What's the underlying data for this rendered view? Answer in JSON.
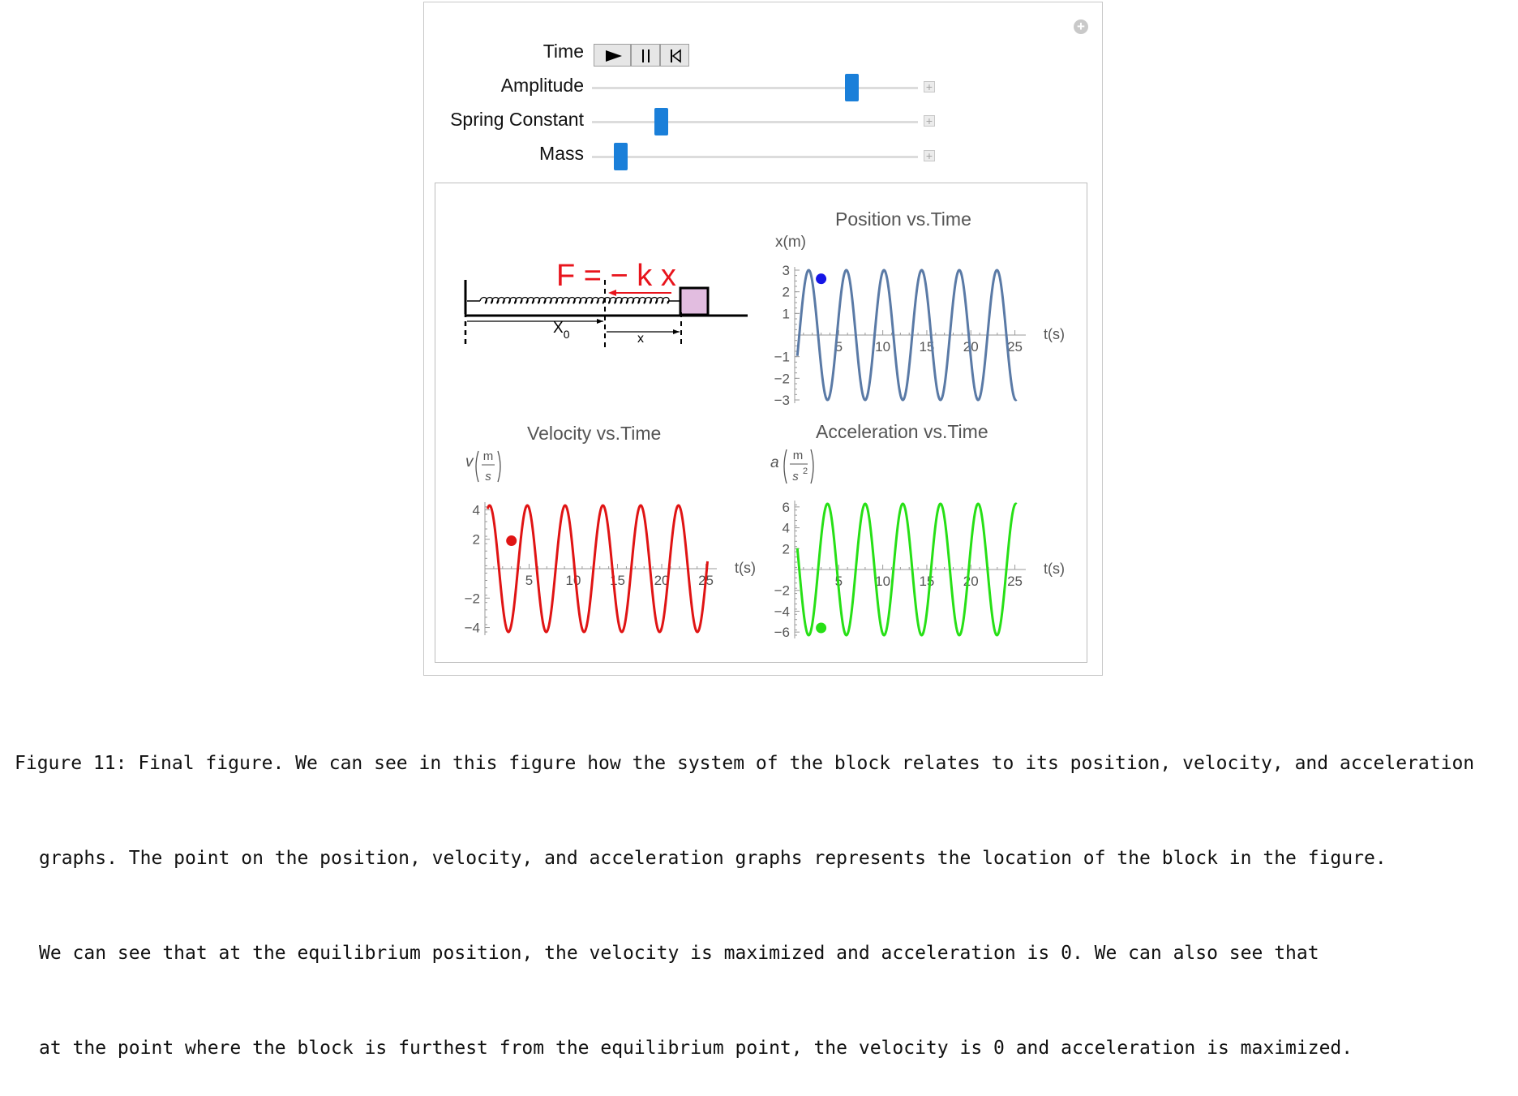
{
  "controls": {
    "time_label": "Time",
    "amplitude_label": "Amplitude",
    "spring_constant_label": "Spring Constant",
    "mass_label": "Mass",
    "amplitude_level": 0.81,
    "spring_constant_level": 0.2,
    "mass_level": 0.07,
    "accent_color": "#1a7fd9",
    "icons": [
      "play-icon",
      "pause-icon",
      "reset-icon",
      "add-icon"
    ]
  },
  "diagram": {
    "force_label": "F = − k x",
    "x0_label": "X",
    "x0_subscript": "0",
    "x_label": "x",
    "force_color": "#e8141c",
    "block_color": "#e2bde0"
  },
  "chart_data": [
    {
      "type": "line",
      "title": "Position vs.Time",
      "ylabel": "x(m)",
      "xlabel": "t(s)",
      "xlim": [
        0,
        25.5
      ],
      "ylim": [
        -3,
        3
      ],
      "xticks": [
        5,
        10,
        15,
        20,
        25
      ],
      "yticks": [
        -3,
        -2,
        -1,
        1,
        2,
        3
      ],
      "series": [
        {
          "amplitude": 3,
          "omega": 1.47,
          "phase": -2.34,
          "t_range": [
            0.3,
            25.2
          ],
          "color": "#5a7aa6"
        }
      ],
      "marker": {
        "t": 3.0,
        "value": 2.6,
        "color": "#1515e6"
      }
    },
    {
      "type": "line",
      "title": "Velocity vs.Time",
      "ylabel": "v",
      "ylabel_unit_num": "m",
      "ylabel_unit_den": "s",
      "xlabel": "t(s)",
      "xlim": [
        0,
        25.5
      ],
      "ylim": [
        -4.3,
        4.3
      ],
      "xticks": [
        5,
        10,
        15,
        20,
        25
      ],
      "yticks": [
        -4,
        -2,
        2,
        4
      ],
      "series": [
        {
          "amplitude": 4.3,
          "omega": 1.47,
          "phase": -0.77,
          "t_range": [
            0.3,
            25.2
          ],
          "color": "#e01414"
        }
      ],
      "marker": {
        "t": 3.0,
        "value": 1.9,
        "color": "#e01414"
      }
    },
    {
      "type": "line",
      "title": "Acceleration vs.Time",
      "ylabel": "a",
      "ylabel_unit_num": "m",
      "ylabel_unit_den": "s",
      "ylabel_unit_exp": "2",
      "xlabel": "t(s)",
      "xlim": [
        0,
        25.5
      ],
      "ylim": [
        -6.3,
        6.3
      ],
      "xticks": [
        5,
        10,
        15,
        20,
        25
      ],
      "yticks": [
        -6,
        -4,
        -2,
        2,
        4,
        6
      ],
      "series": [
        {
          "amplitude": 6.3,
          "omega": 1.47,
          "phase": 0.8,
          "t_range": [
            0.3,
            25.2
          ],
          "color": "#27e016"
        }
      ],
      "marker": {
        "t": 3.0,
        "value": -5.6,
        "color": "#27e016"
      }
    }
  ],
  "caption": {
    "line1": "Figure 11: Final figure. We can see in this figure how the system of the block relates to its position, velocity, and acceleration",
    "line2": "graphs. The point on the position, velocity, and acceleration graphs represents the location of the block in the figure.",
    "line3": "We can see that at the equilibrium position, the velocity is maximized and acceleration is 0. We can also see that",
    "line4": "at the point where the block is furthest from the equilibrium point, the velocity is 0 and acceleration is maximized."
  }
}
